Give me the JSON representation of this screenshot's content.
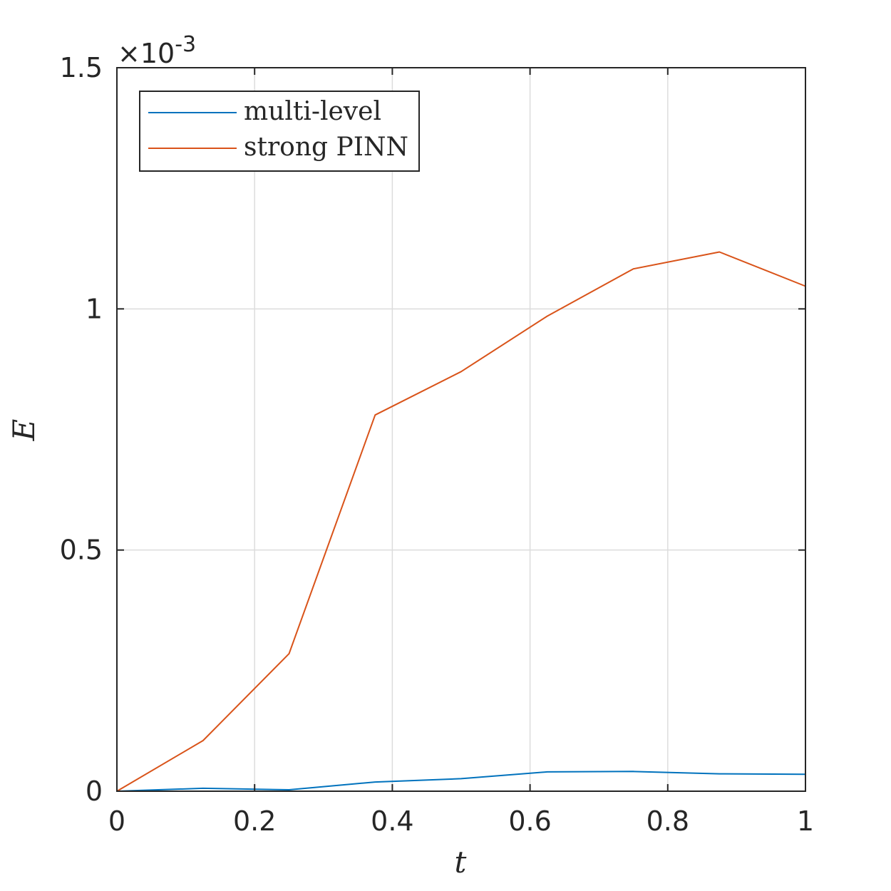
{
  "chart_data": {
    "type": "line",
    "xlabel": "t",
    "ylabel": "E",
    "xlim": [
      0,
      1
    ],
    "ylim": [
      0,
      0.0015
    ],
    "y_exponent_label": "×10",
    "y_exponent_power": "-3",
    "xticks": [
      0,
      0.2,
      0.4,
      0.6,
      0.8,
      1
    ],
    "xtick_labels": [
      "0",
      "0.2",
      "0.4",
      "0.6",
      "0.8",
      "1"
    ],
    "yticks": [
      0,
      0.0005,
      0.001,
      0.0015
    ],
    "ytick_labels": [
      "0",
      "0.5",
      "1",
      "1.5"
    ],
    "grid": true,
    "legend_position": "top-left",
    "series": [
      {
        "name": "multi-level",
        "color": "#0072BD",
        "x": [
          0,
          0.125,
          0.25,
          0.375,
          0.5,
          0.625,
          0.75,
          0.875,
          1
        ],
        "y": [
          0,
          6e-06,
          3e-06,
          1.9e-05,
          2.6e-05,
          4e-05,
          4.1e-05,
          3.6e-05,
          3.5e-05
        ]
      },
      {
        "name": "strong PINN",
        "color": "#D95319",
        "x": [
          0,
          0.125,
          0.25,
          0.375,
          0.5,
          0.625,
          0.75,
          0.875,
          1
        ],
        "y": [
          0,
          0.000105,
          0.000285,
          0.00078,
          0.00087,
          0.000985,
          0.001083,
          0.001118,
          0.001047
        ]
      }
    ]
  }
}
